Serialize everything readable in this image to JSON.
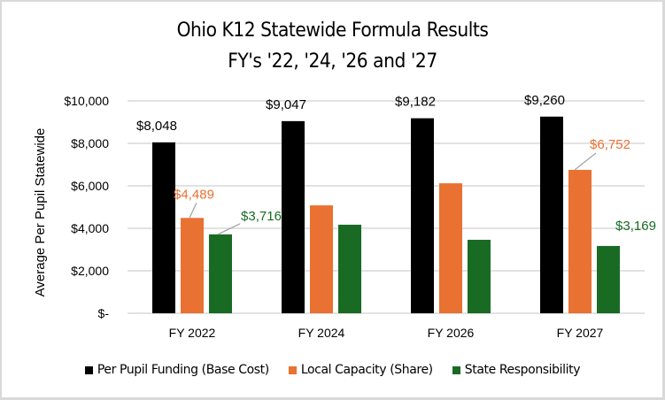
{
  "chart_data": {
    "type": "bar",
    "title": "Ohio K12 Statewide Formula Results",
    "subtitle": "FY's '22, '24, '26 and '27",
    "xlabel": "",
    "ylabel": "Average Per Pupil Statewide",
    "ylim": [
      0,
      10000
    ],
    "yticks": [
      0,
      2000,
      4000,
      6000,
      8000,
      10000
    ],
    "ytick_labels": [
      "$-",
      "$2,000",
      "$4,000",
      "$6,000",
      "$8,000",
      "$10,000"
    ],
    "grid": true,
    "legend_position": "bottom",
    "categories": [
      "FY 2022",
      "FY 2024",
      "FY 2026",
      "FY 2027"
    ],
    "series": [
      {
        "name": "Per Pupil Funding (Base Cost)",
        "color": "#000000",
        "values": [
          8048,
          9047,
          9182,
          9260
        ],
        "labels": [
          "$8,048",
          "$9,047",
          "$9,182",
          "$9,260"
        ]
      },
      {
        "name": "Local Capacity (Share)",
        "color": "#E97132",
        "values": [
          4489,
          5080,
          6120,
          6752
        ],
        "labels": [
          "$4,489",
          null,
          null,
          "$6,752"
        ]
      },
      {
        "name": "State Responsibility",
        "color": "#196B24",
        "values": [
          3716,
          4170,
          3460,
          3169
        ],
        "labels": [
          "$3,716",
          null,
          null,
          "$3,169"
        ]
      }
    ]
  }
}
